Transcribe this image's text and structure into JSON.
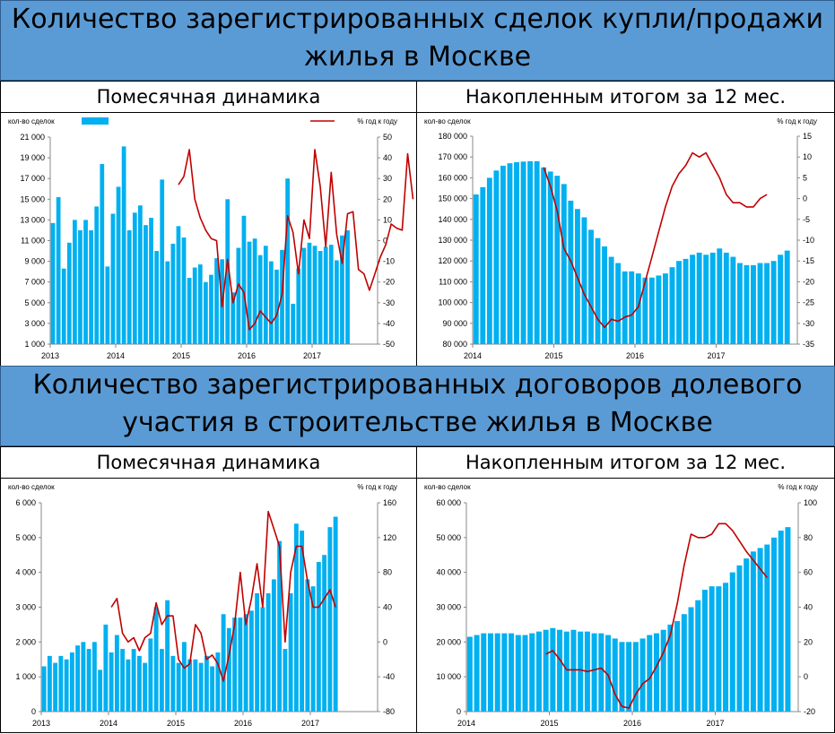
{
  "section1": {
    "title_line1": "Количество зарегистрированных сделок купли/продажи",
    "title_line2": "жилья в Москве",
    "left_heading": "Помесячная динамика",
    "right_heading": "Накопленным итогом за 12 мес."
  },
  "section2": {
    "title_line1": "Количество зарегистрированных договоров долевого",
    "title_line2": "участия в строительстве жилья в Москве",
    "left_heading": "Помесячная динамика",
    "right_heading": "Накопленным итогом за 12 мес."
  },
  "colors": {
    "bar": "#00b0f0",
    "line": "#c00000",
    "banner": "#5b9bd5"
  },
  "chart_data": [
    {
      "id": "c1",
      "type": "bar",
      "title": "Помесячная динамика",
      "left_label": "кол-во сделок",
      "right_label": "% год к году",
      "legend": "top-left bar swatch, top-right line swatch",
      "x_ticks": [
        "2013",
        "2014",
        "2015",
        "2016",
        "2017"
      ],
      "x_tick_index": [
        0,
        12,
        24,
        36,
        48
      ],
      "n_slots": 60,
      "ylim": [
        1000,
        21000
      ],
      "y_ticks": [
        "1 000",
        "3 000",
        "5 000",
        "7 000",
        "9 000",
        "11 000",
        "13 000",
        "15 000",
        "17 000",
        "19 000",
        "21 000"
      ],
      "y2lim": [
        -50,
        50
      ],
      "y2_ticks": [
        "-50",
        "-40",
        "-30",
        "-20",
        "-10",
        "0",
        "10",
        "20",
        "30",
        "40",
        "50"
      ],
      "bars": [
        12700,
        15200,
        8300,
        10800,
        13000,
        12000,
        13000,
        12000,
        14300,
        18400,
        8500,
        13600,
        16200,
        20100,
        12000,
        13700,
        14400,
        12500,
        13200,
        10000,
        16900,
        9000,
        10700,
        12400,
        11300,
        7400,
        8400,
        8700,
        7000,
        7700,
        9300,
        9200,
        15000,
        6000,
        10300,
        13400,
        10900,
        11200,
        9600,
        10500,
        9000,
        8200,
        10100,
        17000,
        4900,
        8300,
        10300,
        10800,
        10500,
        10000,
        10400,
        10600,
        9100,
        11500,
        12000
      ],
      "line": [
        null,
        null,
        null,
        null,
        null,
        null,
        null,
        null,
        null,
        null,
        null,
        null,
        27,
        31,
        44,
        20,
        11,
        5,
        1,
        0,
        -32,
        -9,
        -30,
        -21,
        -25,
        -43,
        -40,
        -34,
        -37,
        -40,
        -36,
        -26,
        12,
        4,
        -16,
        10,
        1,
        44,
        26,
        -3,
        33,
        3,
        -11,
        13,
        14,
        -14,
        -16,
        -24,
        -16,
        -8,
        -2,
        8,
        6,
        5,
        42,
        20
      ],
      "line_offset": 11
    },
    {
      "id": "c2",
      "type": "bar",
      "title": "Накопленным итогом за 12 мес.",
      "left_label": "кол-во сделок",
      "right_label": "% год к году",
      "x_ticks": [
        "2014",
        "2015",
        "2016",
        "2017"
      ],
      "x_tick_index": [
        0,
        12,
        24,
        36
      ],
      "n_slots": 48,
      "ylim": [
        80000,
        180000
      ],
      "y_ticks": [
        "80 000",
        "90 000",
        "100 000",
        "110 000",
        "120 000",
        "130 000",
        "140 000",
        "150 000",
        "160 000",
        "170 000",
        "180 000"
      ],
      "y2lim": [
        -35,
        15
      ],
      "y2_ticks": [
        "-35",
        "-30",
        "-25",
        "-20",
        "-15",
        "-10",
        "-5",
        "0",
        "5",
        "10",
        "15"
      ],
      "bars": [
        152000,
        155500,
        160000,
        163500,
        165800,
        167000,
        167500,
        167800,
        168000,
        168000,
        165000,
        163000,
        161000,
        157000,
        149000,
        145000,
        141000,
        135000,
        131000,
        127000,
        122000,
        119000,
        115000,
        115000,
        114000,
        112000,
        112000,
        113000,
        114000,
        117000,
        120000,
        121000,
        123000,
        124000,
        123000,
        124000,
        126000,
        124000,
        122000,
        119000,
        118000,
        118000,
        119000,
        119000,
        120000,
        123000,
        125000
      ],
      "line": [
        7.5,
        3,
        -3,
        -12,
        -15,
        -19,
        -23,
        -26,
        -29,
        -31,
        -29,
        -29.5,
        -28.5,
        -28,
        -26,
        -20,
        -14,
        -8,
        -2,
        3,
        6,
        8,
        11,
        10,
        11,
        8,
        5,
        1,
        -1,
        -1,
        -2,
        -2,
        0,
        1
      ],
      "line_offset": 10
    },
    {
      "id": "c3",
      "type": "bar",
      "title": "Помесячная динамика",
      "left_label": "кол-во сделок",
      "right_label": "% год к году",
      "x_ticks": [
        "2013",
        "2014",
        "2015",
        "2016",
        "2017"
      ],
      "x_tick_index": [
        0,
        12,
        24,
        36,
        48
      ],
      "n_slots": 60,
      "ylim": [
        0,
        6000
      ],
      "y_ticks": [
        "0",
        "1 000",
        "2 000",
        "3 000",
        "4 000",
        "5 000",
        "6 000"
      ],
      "y2lim": [
        -80,
        160
      ],
      "y2_ticks": [
        "-80",
        "-40",
        "0",
        "40",
        "80",
        "120",
        "160"
      ],
      "bars": [
        1300,
        1600,
        1400,
        1600,
        1500,
        1700,
        1900,
        2000,
        1800,
        2000,
        1200,
        2500,
        1700,
        2200,
        1800,
        1500,
        1800,
        1600,
        1400,
        2100,
        3000,
        1800,
        3200,
        1600,
        1400,
        2000,
        1500,
        1500,
        1400,
        1600,
        1300,
        1700,
        2800,
        2400,
        2700,
        2700,
        2800,
        2900,
        3400,
        3000,
        3400,
        3800,
        4900,
        1800,
        3400,
        5400,
        5200,
        3800,
        3600,
        4300,
        4500,
        5300,
        5600
      ],
      "line": [
        40,
        50,
        10,
        0,
        5,
        -10,
        5,
        10,
        45,
        20,
        30,
        30,
        -20,
        -30,
        -25,
        20,
        10,
        -20,
        -15,
        -25,
        -45,
        -15,
        20,
        80,
        20,
        50,
        90,
        40,
        150,
        130,
        110,
        0,
        80,
        110,
        110,
        70,
        40,
        40,
        50,
        60,
        40
      ],
      "line_offset": 12
    },
    {
      "id": "c4",
      "type": "bar",
      "title": "Накопленным итогом за 12 мес.",
      "left_label": "кол-во сделок",
      "right_label": "% год к году",
      "x_ticks": [
        "2014",
        "2015",
        "2016",
        "2017"
      ],
      "x_tick_index": [
        0,
        12,
        24,
        36
      ],
      "n_slots": 48,
      "ylim": [
        0,
        60000
      ],
      "y_ticks": [
        "0",
        "10 000",
        "20 000",
        "30 000",
        "40 000",
        "50 000",
        "60 000"
      ],
      "y2lim": [
        -20,
        100
      ],
      "y2_ticks": [
        "-20",
        "0",
        "20",
        "40",
        "60",
        "80",
        "100"
      ],
      "bars": [
        21500,
        22000,
        22500,
        22500,
        22500,
        22500,
        22500,
        22000,
        22000,
        22500,
        23000,
        23500,
        24000,
        23500,
        23000,
        23500,
        23000,
        23000,
        22500,
        22500,
        22000,
        21000,
        20000,
        20000,
        20000,
        21000,
        22000,
        22500,
        23500,
        25000,
        26000,
        28000,
        30000,
        32000,
        35000,
        36000,
        36000,
        37000,
        40000,
        42000,
        44000,
        46000,
        47000,
        48000,
        50000,
        52000,
        53000
      ],
      "line": [
        13,
        15,
        10,
        4,
        4,
        4,
        3,
        4,
        5,
        1,
        -10,
        -17,
        -18,
        -10,
        -4,
        -1,
        6,
        14,
        24,
        42,
        64,
        82,
        80,
        80,
        82,
        88,
        88,
        84,
        78,
        72,
        67,
        62,
        57
      ],
      "line_offset": 11
    }
  ]
}
